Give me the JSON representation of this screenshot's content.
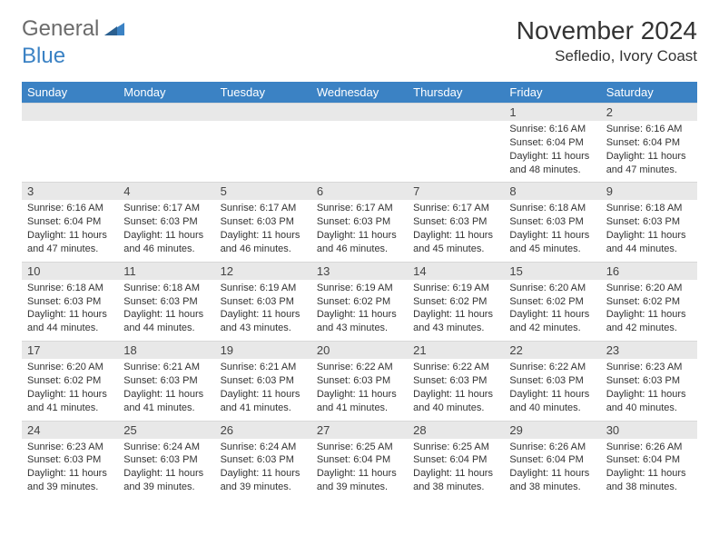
{
  "logo": {
    "text1": "General",
    "text2": "Blue"
  },
  "title": "November 2024",
  "location": "Sefledio, Ivory Coast",
  "colors": {
    "header_bg": "#3b82c4",
    "header_text": "#ffffff",
    "numrow_bg": "#e8e8e8",
    "text": "#333333",
    "logo_gray": "#6b6b6b",
    "logo_blue": "#3b82c4"
  },
  "day_labels": [
    "Sunday",
    "Monday",
    "Tuesday",
    "Wednesday",
    "Thursday",
    "Friday",
    "Saturday"
  ],
  "weeks": [
    {
      "nums": [
        "",
        "",
        "",
        "",
        "",
        "1",
        "2"
      ],
      "cells": [
        null,
        null,
        null,
        null,
        null,
        {
          "sunrise": "Sunrise: 6:16 AM",
          "sunset": "Sunset: 6:04 PM",
          "day1": "Daylight: 11 hours",
          "day2": "and 48 minutes."
        },
        {
          "sunrise": "Sunrise: 6:16 AM",
          "sunset": "Sunset: 6:04 PM",
          "day1": "Daylight: 11 hours",
          "day2": "and 47 minutes."
        }
      ]
    },
    {
      "nums": [
        "3",
        "4",
        "5",
        "6",
        "7",
        "8",
        "9"
      ],
      "cells": [
        {
          "sunrise": "Sunrise: 6:16 AM",
          "sunset": "Sunset: 6:04 PM",
          "day1": "Daylight: 11 hours",
          "day2": "and 47 minutes."
        },
        {
          "sunrise": "Sunrise: 6:17 AM",
          "sunset": "Sunset: 6:03 PM",
          "day1": "Daylight: 11 hours",
          "day2": "and 46 minutes."
        },
        {
          "sunrise": "Sunrise: 6:17 AM",
          "sunset": "Sunset: 6:03 PM",
          "day1": "Daylight: 11 hours",
          "day2": "and 46 minutes."
        },
        {
          "sunrise": "Sunrise: 6:17 AM",
          "sunset": "Sunset: 6:03 PM",
          "day1": "Daylight: 11 hours",
          "day2": "and 46 minutes."
        },
        {
          "sunrise": "Sunrise: 6:17 AM",
          "sunset": "Sunset: 6:03 PM",
          "day1": "Daylight: 11 hours",
          "day2": "and 45 minutes."
        },
        {
          "sunrise": "Sunrise: 6:18 AM",
          "sunset": "Sunset: 6:03 PM",
          "day1": "Daylight: 11 hours",
          "day2": "and 45 minutes."
        },
        {
          "sunrise": "Sunrise: 6:18 AM",
          "sunset": "Sunset: 6:03 PM",
          "day1": "Daylight: 11 hours",
          "day2": "and 44 minutes."
        }
      ]
    },
    {
      "nums": [
        "10",
        "11",
        "12",
        "13",
        "14",
        "15",
        "16"
      ],
      "cells": [
        {
          "sunrise": "Sunrise: 6:18 AM",
          "sunset": "Sunset: 6:03 PM",
          "day1": "Daylight: 11 hours",
          "day2": "and 44 minutes."
        },
        {
          "sunrise": "Sunrise: 6:18 AM",
          "sunset": "Sunset: 6:03 PM",
          "day1": "Daylight: 11 hours",
          "day2": "and 44 minutes."
        },
        {
          "sunrise": "Sunrise: 6:19 AM",
          "sunset": "Sunset: 6:03 PM",
          "day1": "Daylight: 11 hours",
          "day2": "and 43 minutes."
        },
        {
          "sunrise": "Sunrise: 6:19 AM",
          "sunset": "Sunset: 6:02 PM",
          "day1": "Daylight: 11 hours",
          "day2": "and 43 minutes."
        },
        {
          "sunrise": "Sunrise: 6:19 AM",
          "sunset": "Sunset: 6:02 PM",
          "day1": "Daylight: 11 hours",
          "day2": "and 43 minutes."
        },
        {
          "sunrise": "Sunrise: 6:20 AM",
          "sunset": "Sunset: 6:02 PM",
          "day1": "Daylight: 11 hours",
          "day2": "and 42 minutes."
        },
        {
          "sunrise": "Sunrise: 6:20 AM",
          "sunset": "Sunset: 6:02 PM",
          "day1": "Daylight: 11 hours",
          "day2": "and 42 minutes."
        }
      ]
    },
    {
      "nums": [
        "17",
        "18",
        "19",
        "20",
        "21",
        "22",
        "23"
      ],
      "cells": [
        {
          "sunrise": "Sunrise: 6:20 AM",
          "sunset": "Sunset: 6:02 PM",
          "day1": "Daylight: 11 hours",
          "day2": "and 41 minutes."
        },
        {
          "sunrise": "Sunrise: 6:21 AM",
          "sunset": "Sunset: 6:03 PM",
          "day1": "Daylight: 11 hours",
          "day2": "and 41 minutes."
        },
        {
          "sunrise": "Sunrise: 6:21 AM",
          "sunset": "Sunset: 6:03 PM",
          "day1": "Daylight: 11 hours",
          "day2": "and 41 minutes."
        },
        {
          "sunrise": "Sunrise: 6:22 AM",
          "sunset": "Sunset: 6:03 PM",
          "day1": "Daylight: 11 hours",
          "day2": "and 41 minutes."
        },
        {
          "sunrise": "Sunrise: 6:22 AM",
          "sunset": "Sunset: 6:03 PM",
          "day1": "Daylight: 11 hours",
          "day2": "and 40 minutes."
        },
        {
          "sunrise": "Sunrise: 6:22 AM",
          "sunset": "Sunset: 6:03 PM",
          "day1": "Daylight: 11 hours",
          "day2": "and 40 minutes."
        },
        {
          "sunrise": "Sunrise: 6:23 AM",
          "sunset": "Sunset: 6:03 PM",
          "day1": "Daylight: 11 hours",
          "day2": "and 40 minutes."
        }
      ]
    },
    {
      "nums": [
        "24",
        "25",
        "26",
        "27",
        "28",
        "29",
        "30"
      ],
      "cells": [
        {
          "sunrise": "Sunrise: 6:23 AM",
          "sunset": "Sunset: 6:03 PM",
          "day1": "Daylight: 11 hours",
          "day2": "and 39 minutes."
        },
        {
          "sunrise": "Sunrise: 6:24 AM",
          "sunset": "Sunset: 6:03 PM",
          "day1": "Daylight: 11 hours",
          "day2": "and 39 minutes."
        },
        {
          "sunrise": "Sunrise: 6:24 AM",
          "sunset": "Sunset: 6:03 PM",
          "day1": "Daylight: 11 hours",
          "day2": "and 39 minutes."
        },
        {
          "sunrise": "Sunrise: 6:25 AM",
          "sunset": "Sunset: 6:04 PM",
          "day1": "Daylight: 11 hours",
          "day2": "and 39 minutes."
        },
        {
          "sunrise": "Sunrise: 6:25 AM",
          "sunset": "Sunset: 6:04 PM",
          "day1": "Daylight: 11 hours",
          "day2": "and 38 minutes."
        },
        {
          "sunrise": "Sunrise: 6:26 AM",
          "sunset": "Sunset: 6:04 PM",
          "day1": "Daylight: 11 hours",
          "day2": "and 38 minutes."
        },
        {
          "sunrise": "Sunrise: 6:26 AM",
          "sunset": "Sunset: 6:04 PM",
          "day1": "Daylight: 11 hours",
          "day2": "and 38 minutes."
        }
      ]
    }
  ]
}
